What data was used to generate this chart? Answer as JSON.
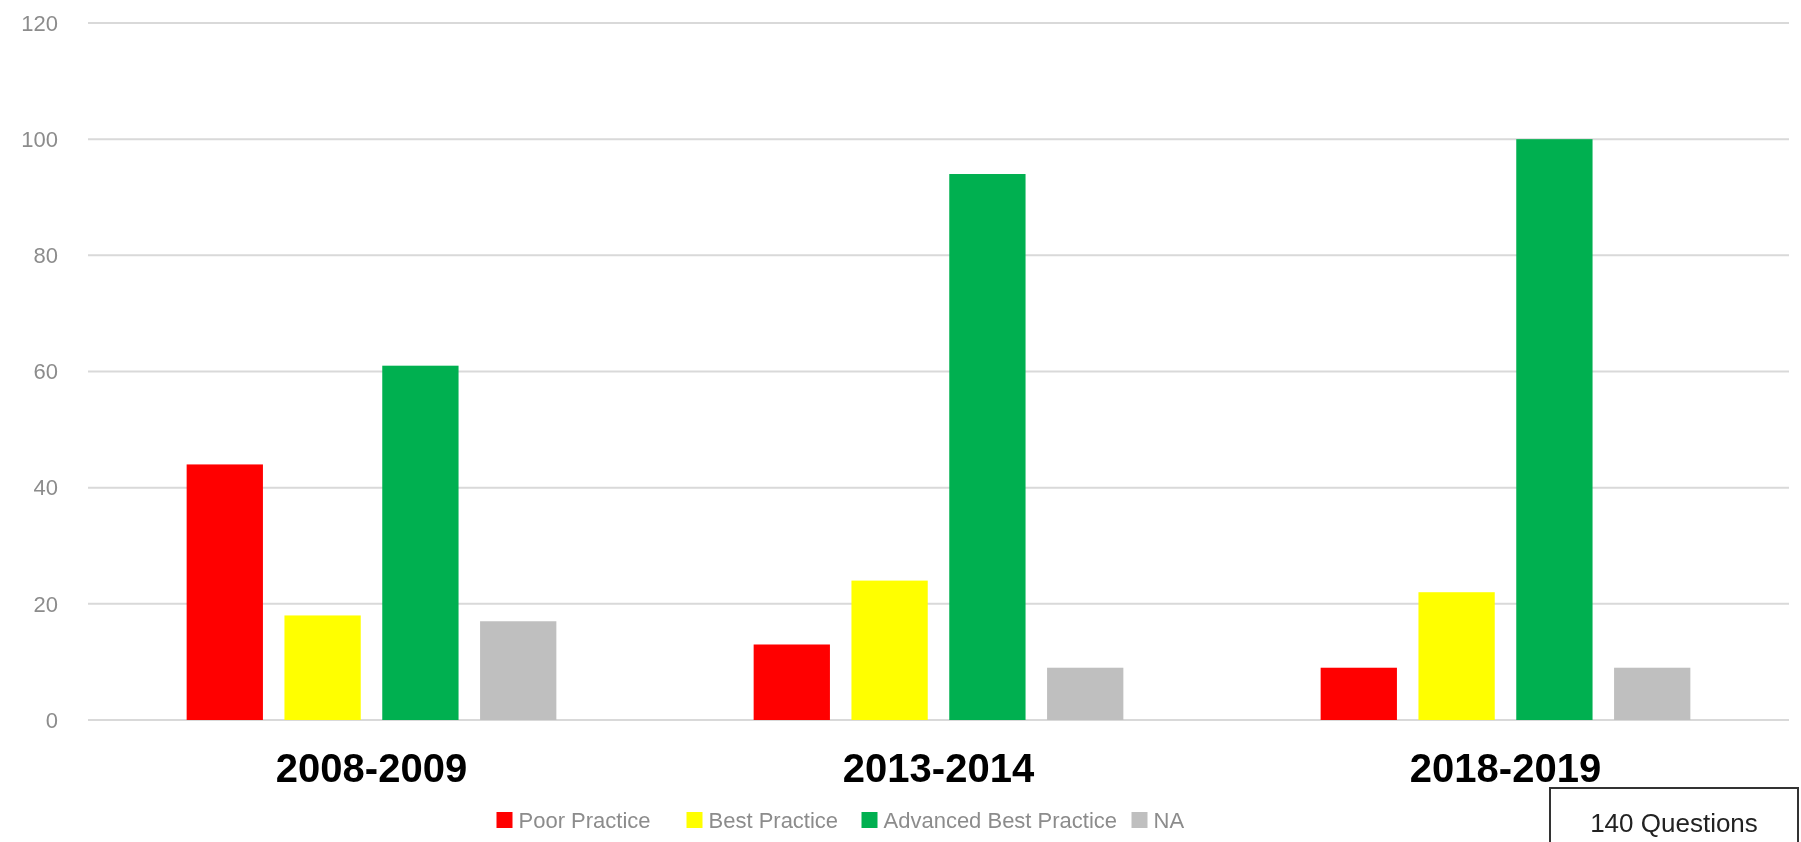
{
  "chart_data": {
    "type": "bar",
    "categories": [
      "2008-2009",
      "2013-2014",
      "2018-2019"
    ],
    "series": [
      {
        "name": "Poor Practice",
        "color": "#ff0000",
        "values": [
          44,
          13,
          9
        ]
      },
      {
        "name": "Best Practice",
        "color": "#ffff00",
        "values": [
          18,
          24,
          22
        ]
      },
      {
        "name": "Advanced Best Practice",
        "color": "#00b050",
        "values": [
          61,
          94,
          100
        ]
      },
      {
        "name": "NA",
        "color": "#bfbfbf",
        "values": [
          17,
          9,
          9
        ]
      }
    ],
    "ylim": [
      0,
      120
    ],
    "yticks": [
      0,
      20,
      40,
      60,
      80,
      100,
      120
    ],
    "grid": "y",
    "legend": "bottom",
    "annotations": [
      "140 Questions"
    ]
  }
}
